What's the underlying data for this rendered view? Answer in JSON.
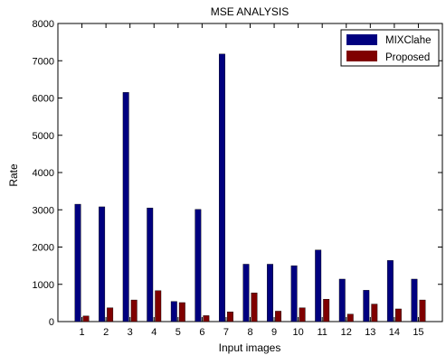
{
  "chart_data": {
    "type": "bar",
    "title": "MSE ANALYSIS",
    "xlabel": "Input images",
    "ylabel": "Rate",
    "categories": [
      "1",
      "2",
      "3",
      "4",
      "5",
      "6",
      "7",
      "8",
      "9",
      "10",
      "11",
      "12",
      "13",
      "14",
      "15"
    ],
    "series": [
      {
        "name": "MIXClahe",
        "color": "#00007f",
        "values": [
          3150,
          3080,
          6150,
          3050,
          540,
          3010,
          7180,
          1540,
          1540,
          1500,
          1920,
          1140,
          840,
          1640,
          1140
        ]
      },
      {
        "name": "Proposed",
        "color": "#7f0000",
        "values": [
          150,
          370,
          580,
          830,
          510,
          160,
          260,
          770,
          280,
          370,
          600,
          200,
          470,
          340,
          580
        ]
      }
    ],
    "ylim": [
      0,
      8000
    ],
    "yticks": [
      0,
      1000,
      2000,
      3000,
      4000,
      5000,
      6000,
      7000,
      8000
    ],
    "grid": false,
    "legend_position": "top-right"
  }
}
